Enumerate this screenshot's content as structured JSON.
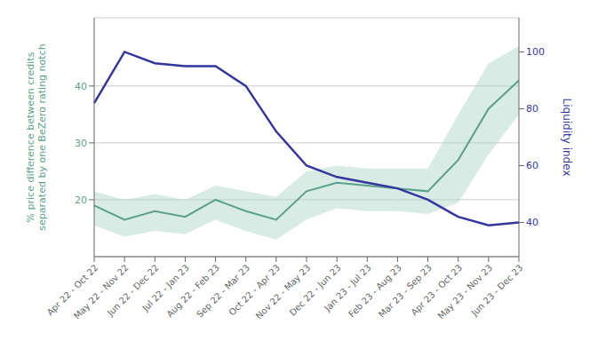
{
  "chart_data": {
    "type": "line",
    "categories": [
      "Apr 22 - Oct 22",
      "May 22 - Nov 22",
      "Jun 22 - Dec 22",
      "Jul 22 - Jan 23",
      "Aug 22 - Feb 23",
      "Sep 22 - Mar 23",
      "Oct 22 - Apr 23",
      "Nov 22 - May 23",
      "Dec 22 - Jun 23",
      "Jan 23 - Jul 23",
      "Feb 23 - Aug 23",
      "Mar 23 - Sep 23",
      "Apr 23 - Oct 23",
      "May 23 - Nov 23",
      "Jun 23 - Dec 23"
    ],
    "series": [
      {
        "type": "band",
        "color": "#a8d5c5",
        "lower": [
          15.5,
          13.5,
          14.5,
          14.0,
          16.5,
          14.5,
          13.0,
          16.5,
          18.5,
          18.0,
          18.0,
          17.5,
          19.5,
          28.0,
          35.0
        ],
        "upper": [
          21.5,
          20.0,
          21.0,
          20.0,
          22.5,
          21.5,
          20.5,
          25.0,
          26.0,
          25.5,
          25.5,
          25.5,
          35.0,
          44.0,
          47.0
        ]
      },
      {
        "type": "line",
        "color": "#5ba08a",
        "values": [
          19.0,
          16.5,
          18.0,
          17.0,
          20.0,
          18.0,
          16.5,
          21.5,
          23.0,
          22.5,
          22.0,
          21.5,
          27.0,
          36.0,
          41.0
        ]
      },
      {
        "type": "line",
        "color": "#3535a0",
        "axis": "y2",
        "values": [
          82.0,
          100.0,
          96.0,
          95.0,
          95.0,
          88.0,
          72.0,
          60.0,
          56.0,
          54.0,
          52.0,
          48.0,
          42.0,
          39.0,
          40.0
        ]
      }
    ],
    "ylabel": "% price difference between credits\nseparated by one BeZero rating notch",
    "y2label": "Liquidity index",
    "ylim": [
      10,
      52
    ],
    "yticks": [
      20,
      30,
      40
    ],
    "y2lim": [
      28,
      112
    ],
    "y2ticks": [
      40,
      60,
      80,
      100
    ],
    "grid": true
  }
}
